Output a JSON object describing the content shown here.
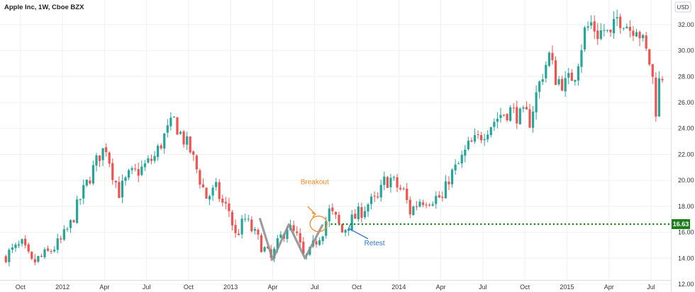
{
  "header": {
    "title": "Apple Inc, 1W, Cboe BZX",
    "currency": "USD"
  },
  "colors": {
    "up": "#26a69a",
    "down": "#ef5350",
    "level": "#1b7d1b",
    "breakout": "#f28c28",
    "retest": "#2f78c9",
    "pattern": "#8c8c8c"
  },
  "chart_data": {
    "type": "candlestick",
    "title": "Apple Inc, 1W, Cboe BZX",
    "yaxis": {
      "label": "USD",
      "ylim": [
        11.4,
        33.9
      ],
      "ticks": [
        12,
        14,
        16,
        18,
        20,
        22,
        24,
        26,
        28,
        30,
        32
      ]
    },
    "xaxis": {
      "range": [
        0,
        203
      ],
      "ticks": [
        {
          "label": "Oct",
          "x": 5
        },
        {
          "label": "2012",
          "x": 18
        },
        {
          "label": "Apr",
          "x": 31
        },
        {
          "label": "Jul",
          "x": 44
        },
        {
          "label": "Oct",
          "x": 57
        },
        {
          "label": "2013",
          "x": 70
        },
        {
          "label": "Apr",
          "x": 83
        },
        {
          "label": "Jul",
          "x": 96
        },
        {
          "label": "Oct",
          "x": 109
        },
        {
          "label": "2014",
          "x": 122
        },
        {
          "label": "Apr",
          "x": 135
        },
        {
          "label": "Jul",
          "x": 148
        },
        {
          "label": "Oct",
          "x": 161
        },
        {
          "label": "2015",
          "x": 174
        },
        {
          "label": "Apr",
          "x": 187
        },
        {
          "label": "Jul",
          "x": 200
        }
      ]
    },
    "key_points": [
      [
        0,
        14.1
      ],
      [
        6,
        15.0
      ],
      [
        9,
        13.6
      ],
      [
        14,
        14.4
      ],
      [
        18,
        15.3
      ],
      [
        21,
        16.6
      ],
      [
        24,
        18.6
      ],
      [
        27,
        20.3
      ],
      [
        30,
        22.0
      ],
      [
        32,
        22.6
      ],
      [
        34,
        20.6
      ],
      [
        36,
        19.1
      ],
      [
        39,
        20.3
      ],
      [
        43,
        20.9
      ],
      [
        47,
        21.8
      ],
      [
        50,
        23.4
      ],
      [
        53,
        24.6
      ],
      [
        55,
        23.6
      ],
      [
        58,
        22.3
      ],
      [
        61,
        20.1
      ],
      [
        63,
        18.7
      ],
      [
        66,
        19.3
      ],
      [
        68,
        18.2
      ],
      [
        70,
        17.7
      ],
      [
        72,
        15.7
      ],
      [
        75,
        17.0
      ],
      [
        79,
        15.4
      ],
      [
        83,
        13.9
      ],
      [
        86,
        15.6
      ],
      [
        88,
        16.5
      ],
      [
        91,
        15.6
      ],
      [
        93,
        14.1
      ],
      [
        94.5,
        14.1
      ],
      [
        97,
        15.4
      ],
      [
        99,
        16.2
      ],
      [
        101,
        17.6
      ],
      [
        103,
        17.0
      ],
      [
        105,
        16.0
      ],
      [
        107,
        16.7
      ],
      [
        110,
        17.4
      ],
      [
        113,
        18.2
      ],
      [
        116,
        18.5
      ],
      [
        118,
        19.9
      ],
      [
        120,
        20.1
      ],
      [
        122,
        19.5
      ],
      [
        124,
        19.1
      ],
      [
        126,
        17.6
      ],
      [
        129,
        18.5
      ],
      [
        132,
        18.6
      ],
      [
        135,
        18.7
      ],
      [
        136,
        18.5
      ],
      [
        138,
        20.2
      ],
      [
        141,
        21.2
      ],
      [
        144,
        22.6
      ],
      [
        147,
        23.2
      ],
      [
        150,
        24.1
      ],
      [
        154,
        25.1
      ],
      [
        157,
        25.4
      ],
      [
        160,
        24.9
      ],
      [
        162,
        25.0
      ],
      [
        163,
        24.6
      ],
      [
        165,
        26.6
      ],
      [
        167,
        28.3
      ],
      [
        169,
        29.6
      ],
      [
        171,
        27.9
      ],
      [
        174,
        27.4
      ],
      [
        177,
        28.3
      ],
      [
        180,
        31.5
      ],
      [
        182,
        32.1
      ],
      [
        184,
        31.3
      ],
      [
        186,
        31.6
      ],
      [
        188,
        31.0
      ],
      [
        190,
        32.5
      ],
      [
        192,
        32.4
      ],
      [
        194,
        31.7
      ],
      [
        196,
        32.0
      ],
      [
        198,
        30.6
      ],
      [
        200,
        29.1
      ],
      [
        201,
        27.8
      ],
      [
        202,
        25.5
      ],
      [
        202.5,
        24.0
      ],
      [
        203,
        27.6
      ],
      [
        204,
        28.1
      ]
    ],
    "level": {
      "value": 16.63,
      "label": "16.63",
      "x_from": 101,
      "x_to": 206
    },
    "pattern_line": [
      [
        79,
        17.1
      ],
      [
        83,
        13.9
      ],
      [
        88,
        16.6
      ],
      [
        93,
        14.0
      ],
      [
        98.5,
        16.6
      ]
    ],
    "annotations": [
      {
        "text": "Breakout",
        "x": 96,
        "y": 19.7
      },
      {
        "text": "Retest",
        "x": 114.5,
        "y": 15.0
      }
    ],
    "grid": true
  }
}
